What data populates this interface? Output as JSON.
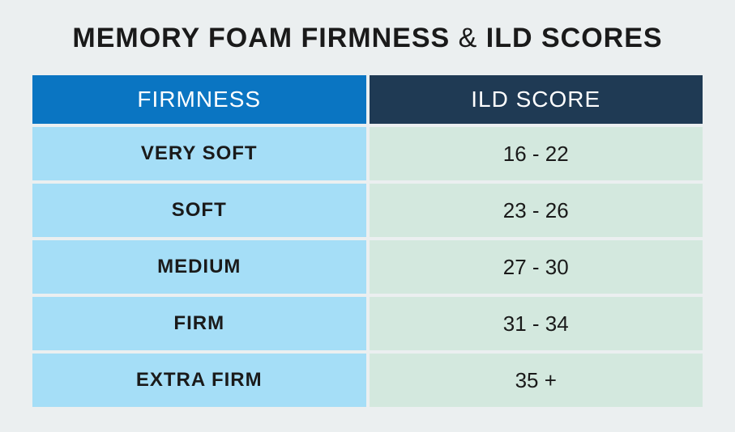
{
  "title_part1": "MEMORY FOAM FIRMNESS",
  "title_amp": "&",
  "title_part2": "ILD SCORES",
  "table": {
    "header_firmness_bg": "#0a75c2",
    "header_score_bg": "#1f3a54",
    "header_text_color": "#ffffff",
    "firmness_cell_bg": "#a5def7",
    "score_cell_bg": "#d3e8de",
    "columns": [
      "FIRMNESS",
      "ILD SCORE"
    ],
    "rows": [
      {
        "firmness": "VERY SOFT",
        "score": "16 - 22"
      },
      {
        "firmness": "SOFT",
        "score": "23 - 26"
      },
      {
        "firmness": "MEDIUM",
        "score": "27 - 30"
      },
      {
        "firmness": "FIRM",
        "score": "31 - 34"
      },
      {
        "firmness": "EXTRA FIRM",
        "score": "35 +"
      }
    ]
  }
}
